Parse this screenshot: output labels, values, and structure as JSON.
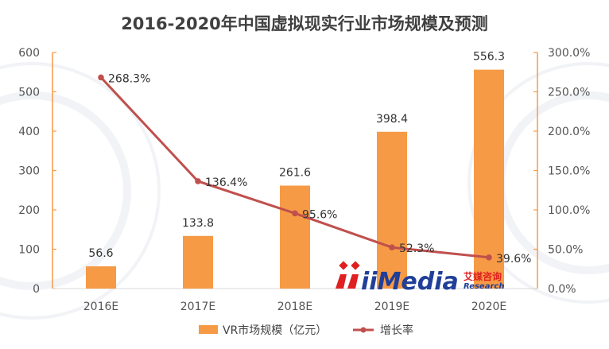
{
  "chart_data": {
    "type": "bar+line",
    "title": "2016-2020年中国虚拟现实行业市场规模及预测",
    "categories": [
      "2016E",
      "2017E",
      "2018E",
      "2019E",
      "2020E"
    ],
    "series": [
      {
        "name": "VR市场规模（亿元）",
        "type": "bar",
        "axis": "left",
        "values": [
          56.6,
          133.8,
          261.6,
          398.4,
          556.3
        ],
        "labels": [
          "56.6",
          "133.8",
          "261.6",
          "398.4",
          "556.3"
        ],
        "color": "#f79a45"
      },
      {
        "name": "增长率",
        "type": "line",
        "axis": "right",
        "values": [
          268.3,
          136.4,
          95.6,
          52.3,
          39.6
        ],
        "labels": [
          "268.3%",
          "136.4%",
          "95.6%",
          "52.3%",
          "39.6%"
        ],
        "color": "#c0504d"
      }
    ],
    "y_left": {
      "ylim": [
        0,
        600
      ],
      "ticks": [
        "0",
        "100",
        "200",
        "300",
        "400",
        "500",
        "600"
      ]
    },
    "y_right": {
      "ylim": [
        0,
        300
      ],
      "ticks": [
        "0.0%",
        "50.0%",
        "100.0%",
        "150.0%",
        "200.0%",
        "250.0%",
        "300.0%"
      ]
    },
    "axis_color": "#f79a45",
    "grid": false,
    "legend_position": "bottom"
  },
  "watermark": {
    "logo_text": "iiMedia",
    "cn_text": "艾媒咨询",
    "en_text": "Research"
  }
}
